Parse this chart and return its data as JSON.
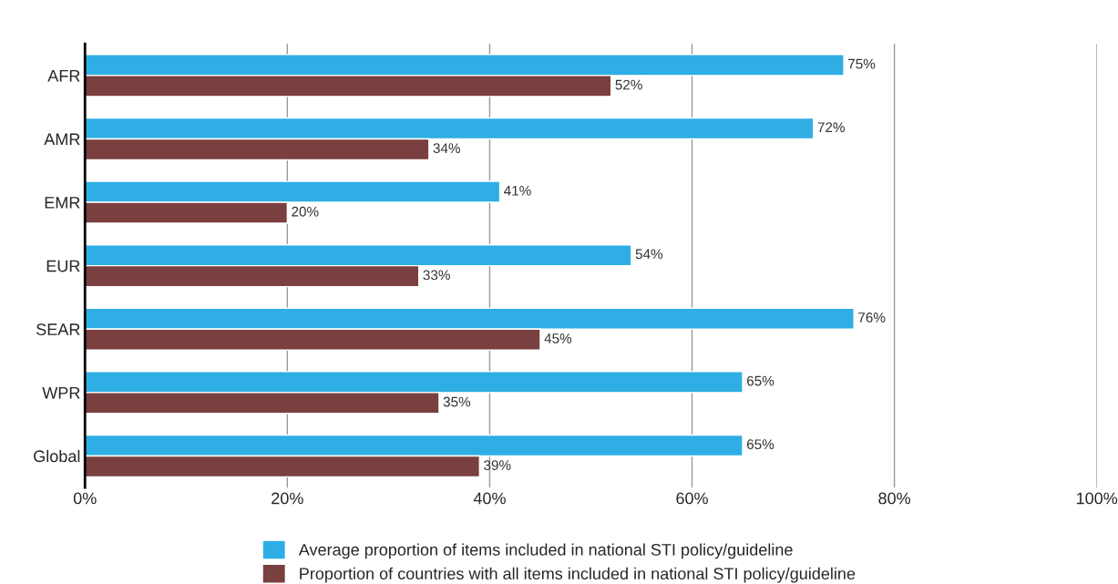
{
  "chart_data": {
    "type": "bar",
    "orientation": "horizontal",
    "categories": [
      "AFR",
      "AMR",
      "EMR",
      "EUR",
      "SEAR",
      "WPR",
      "Global"
    ],
    "series": [
      {
        "name": "Average proportion of items included in national STI policy/guideline",
        "color": "#2eaee4",
        "values": [
          75,
          72,
          41,
          54,
          76,
          65,
          65
        ],
        "value_labels": [
          "75%",
          "72%",
          "41%",
          "54%",
          "76%",
          "65%",
          "65%"
        ]
      },
      {
        "name": "Proportion of countries with all items included in national STI policy/guideline",
        "color": "#7a3f3f",
        "values": [
          52,
          34,
          20,
          33,
          45,
          35,
          39
        ],
        "value_labels": [
          "52%",
          "34%",
          "20%",
          "33%",
          "45%",
          "35%",
          "39%"
        ]
      }
    ],
    "xlim": [
      0,
      100
    ],
    "xticks": [
      {
        "value": 0,
        "label": "0%"
      },
      {
        "value": 20,
        "label": "20%"
      },
      {
        "value": 40,
        "label": "40%"
      },
      {
        "value": 60,
        "label": "60%"
      },
      {
        "value": 80,
        "label": "80%"
      },
      {
        "value": 100,
        "label": "100%"
      }
    ],
    "grid": "x",
    "legend": "bottom"
  }
}
